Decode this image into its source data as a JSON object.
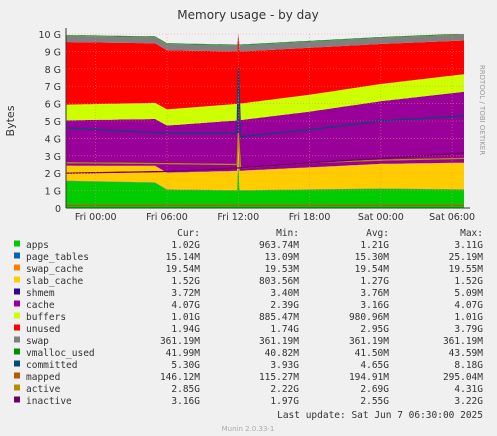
{
  "chart_data": {
    "type": "area",
    "title": "Memory usage - by day",
    "ylabel": "Bytes",
    "side_label": "RRDTOOL / TOBI OETIKER",
    "y_ticks": [
      "0",
      "1 G",
      "2 G",
      "3 G",
      "4 G",
      "5 G",
      "6 G",
      "7 G",
      "8 G",
      "9 G",
      "10 G"
    ],
    "ylim": [
      0,
      10
    ],
    "y_unit": "G",
    "x_ticks": [
      "Fri 00:00",
      "Fri 06:00",
      "Fri 12:00",
      "Fri 18:00",
      "Sat 00:00",
      "Sat 06:00"
    ],
    "xlim_hours": [
      -2.5,
      31
    ],
    "x_tick_hours": [
      0,
      6,
      12,
      18,
      24,
      30
    ],
    "grid": true,
    "legend_header": [
      "Cur:",
      "Min:",
      "Avg:",
      "Max:"
    ],
    "series": [
      {
        "name": "apps",
        "color": "#00cc00",
        "cur": "1.02G",
        "min": "963.74M",
        "avg": "1.21G",
        "max": "3.11G",
        "values": [
          [
            -2.5,
            1.55
          ],
          [
            5.0,
            1.45
          ],
          [
            6.0,
            1.05
          ],
          [
            11.9,
            1.0
          ],
          [
            12.0,
            3.0
          ],
          [
            12.1,
            1.0
          ],
          [
            24.0,
            1.1
          ],
          [
            31.0,
            1.05
          ]
        ]
      },
      {
        "name": "page_tables",
        "color": "#0066b3",
        "cur": "15.14M",
        "min": "13.09M",
        "avg": "15.30M",
        "max": "25.19M",
        "values": [
          [
            -2.5,
            0.015
          ],
          [
            31.0,
            0.015
          ]
        ]
      },
      {
        "name": "swap_cache",
        "color": "#ff8000",
        "cur": "19.54M",
        "min": "19.53M",
        "avg": "19.54M",
        "max": "19.55M",
        "values": [
          [
            -2.5,
            0.02
          ],
          [
            31.0,
            0.02
          ]
        ]
      },
      {
        "name": "slab_cache",
        "color": "#ffcc00",
        "cur": "1.52G",
        "min": "803.56M",
        "avg": "1.27G",
        "max": "1.52G",
        "values": [
          [
            -2.5,
            0.85
          ],
          [
            6.0,
            0.95
          ],
          [
            12.0,
            1.1
          ],
          [
            18.0,
            1.25
          ],
          [
            24.0,
            1.4
          ],
          [
            31.0,
            1.52
          ]
        ]
      },
      {
        "name": "shmem",
        "color": "#330099",
        "cur": "3.72M",
        "min": "3.40M",
        "avg": "3.76M",
        "max": "5.09M",
        "values": [
          [
            -2.5,
            0.004
          ],
          [
            31.0,
            0.004
          ]
        ]
      },
      {
        "name": "cache",
        "color": "#990099",
        "cur": "4.07G",
        "min": "2.39G",
        "avg": "3.16G",
        "avg_note": "",
        "max": "4.07G",
        "values": [
          [
            -2.5,
            2.6
          ],
          [
            6.0,
            2.7
          ],
          [
            12.0,
            2.9
          ],
          [
            18.0,
            3.2
          ],
          [
            24.0,
            3.6
          ],
          [
            31.0,
            4.07
          ]
        ]
      },
      {
        "name": "buffers",
        "color": "#ccff00",
        "cur": "1.01G",
        "min": "885.47M",
        "avg": "980.96M",
        "max": "1.01G",
        "values": [
          [
            -2.5,
            0.9
          ],
          [
            12.0,
            0.95
          ],
          [
            24.0,
            0.99
          ],
          [
            31.0,
            1.01
          ]
        ]
      },
      {
        "name": "unused",
        "color": "#ff0000",
        "cur": "1.94G",
        "min": "1.74G",
        "avg": "2.95G",
        "max": "3.79G",
        "values": [
          [
            -2.5,
            3.6
          ],
          [
            6.0,
            3.4
          ],
          [
            12.0,
            3.0
          ],
          [
            18.0,
            2.7
          ],
          [
            24.0,
            2.3
          ],
          [
            31.0,
            1.94
          ]
        ]
      },
      {
        "name": "swap",
        "color": "#808080",
        "cur": "361.19M",
        "min": "361.19M",
        "avg": "361.19M",
        "max": "361.19M",
        "values": [
          [
            -2.5,
            0.36
          ],
          [
            31.0,
            0.36
          ]
        ]
      },
      {
        "name": "vmalloc_used",
        "color": "#008f00",
        "cur": "41.99M",
        "min": "40.82M",
        "avg": "41.50M",
        "max": "43.59M",
        "values": [
          [
            -2.5,
            0.04
          ],
          [
            31.0,
            0.04
          ]
        ]
      },
      {
        "name": "committed",
        "color": "#00487d",
        "cur": "5.30G",
        "min": "3.93G",
        "avg": "4.65G",
        "max": "8.18G",
        "values": [
          [
            -2.5,
            4.6
          ],
          [
            6.0,
            4.3
          ],
          [
            11.9,
            4.3
          ],
          [
            12.0,
            8.1
          ],
          [
            12.2,
            4.1
          ],
          [
            18.0,
            4.5
          ],
          [
            24.0,
            5.0
          ],
          [
            31.0,
            5.3
          ]
        ]
      },
      {
        "name": "mapped",
        "color": "#b35a00",
        "cur": "146.12M",
        "min": "115.27M",
        "avg": "194.91M",
        "max": "295.04M",
        "values": [
          [
            -2.5,
            0.15
          ],
          [
            31.0,
            0.15
          ]
        ]
      },
      {
        "name": "active",
        "color": "#b38f00",
        "cur": "2.85G",
        "min": "2.22G",
        "avg": "2.69G",
        "max": "4.31G",
        "values": [
          [
            -2.5,
            2.6
          ],
          [
            6.0,
            2.55
          ],
          [
            11.9,
            2.5
          ],
          [
            12.0,
            4.3
          ],
          [
            12.2,
            2.3
          ],
          [
            18.0,
            2.6
          ],
          [
            24.0,
            2.75
          ],
          [
            31.0,
            2.85
          ]
        ]
      },
      {
        "name": "inactive",
        "color": "#6b006b",
        "cur": "3.16G",
        "min": "1.97G",
        "avg": "2.55G",
        "max": "3.22G",
        "values": [
          [
            -2.5,
            2.0
          ],
          [
            6.0,
            2.1
          ],
          [
            12.0,
            2.3
          ],
          [
            18.0,
            2.6
          ],
          [
            24.0,
            2.85
          ],
          [
            31.0,
            3.16
          ]
        ]
      }
    ],
    "stacked_order": [
      "apps",
      "page_tables",
      "swap_cache",
      "slab_cache",
      "shmem",
      "cache",
      "buffers",
      "unused",
      "swap",
      "vmalloc_used"
    ],
    "line_series": [
      "committed",
      "mapped",
      "active",
      "inactive"
    ],
    "last_update": "Last update:  Sat Jun  7 06:30:00 2025",
    "footer": "Munin 2.0.33-1"
  }
}
